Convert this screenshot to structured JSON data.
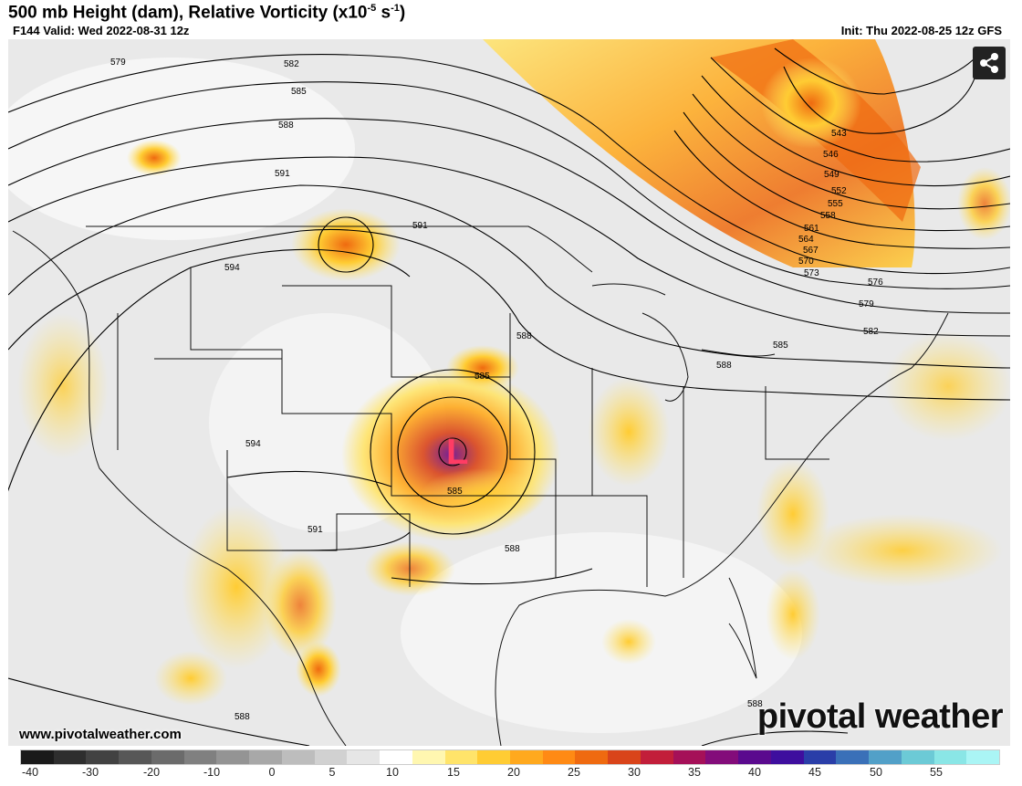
{
  "header": {
    "title_main": "500 mb Height (dam), Relative Vorticity (x10",
    "title_exp1": "-5",
    "title_mid": " s",
    "title_exp2": "-1",
    "title_end": ")",
    "valid_text": "F144 Valid: Wed 2022-08-31 12z",
    "init_text": "Init: Thu 2022-08-25 12z GFS"
  },
  "map": {
    "low_marker": "L",
    "contour_labels": {
      "c579a": "579",
      "c582a": "582",
      "c585a": "585",
      "c588a": "588",
      "c591a": "591",
      "c591b": "591",
      "c594a": "594",
      "c594b": "594",
      "c591c": "591",
      "c585b": "585",
      "c585c": "585",
      "c588b": "588",
      "c588c": "588",
      "c588d": "588",
      "c588e": "588",
      "c588f": "588",
      "c585d": "585",
      "c582b": "582",
      "c579b": "579",
      "c576": "576",
      "c573": "573",
      "c570": "570",
      "c567": "567",
      "c564": "564",
      "c561": "561",
      "c558": "558",
      "c555": "555",
      "c552": "552",
      "c549": "549",
      "c546": "546",
      "c543": "543"
    },
    "watermark_url": "www.pivotalweather.com",
    "brand": "pivotal weather",
    "share_icon": "share-icon"
  },
  "colorbar": {
    "ticks": [
      "-40",
      "-30",
      "-20",
      "-10",
      "0",
      "5",
      "10",
      "15",
      "20",
      "25",
      "30",
      "35",
      "40",
      "45",
      "50",
      "55"
    ],
    "colors": [
      "#1a1a1a",
      "#2e2e2e",
      "#424242",
      "#575757",
      "#6b6b6b",
      "#808080",
      "#949494",
      "#a8a8a8",
      "#bdbdbd",
      "#d1d1d1",
      "#e6e6e6",
      "#ffffff",
      "#fff7b0",
      "#ffe46a",
      "#ffcc33",
      "#ffa91e",
      "#ff8a14",
      "#ef6a10",
      "#d9441a",
      "#c21e3a",
      "#a51058",
      "#830c7a",
      "#5a0a8e",
      "#3e0e9e",
      "#2a3ea8",
      "#3a70b8",
      "#52a0c8",
      "#6ccad6",
      "#8ae6e6",
      "#aaf5f5"
    ]
  }
}
